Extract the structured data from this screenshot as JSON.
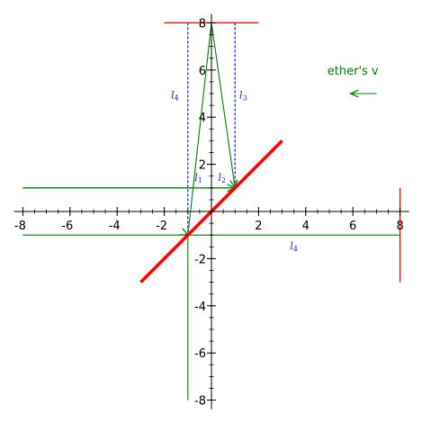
{
  "axes": {
    "xlim": [
      -8,
      8
    ],
    "ylim": [
      -8,
      8
    ],
    "major_ticks": [
      -8,
      -6,
      -4,
      -2,
      2,
      4,
      6,
      8
    ],
    "minor_step": 0.5,
    "x_tick_labels": [
      "-8",
      "-6",
      "-4",
      "-2",
      "2",
      "4",
      "6",
      "8"
    ],
    "y_tick_labels": [
      "-8",
      "-6",
      "-4",
      "-2",
      "2",
      "4",
      "6",
      "8"
    ]
  },
  "colors": {
    "red": "#ff0000",
    "green": "#008000",
    "blue": "#0000dd",
    "axis": "#000000"
  },
  "labels": {
    "l1": {
      "base": "l",
      "sub": "1",
      "x": -0.55,
      "y": 1.45
    },
    "l2": {
      "base": "l",
      "sub": "2",
      "x": 0.45,
      "y": 1.45
    },
    "l3": {
      "base": "l",
      "sub": "3",
      "x": 1.35,
      "y": 4.95
    },
    "l4_top": {
      "base": "l",
      "sub": "4",
      "x": -1.55,
      "y": 4.95
    },
    "l4_bottom": {
      "base": "l",
      "sub": "4",
      "x": 3.5,
      "y": -1.45
    }
  },
  "ether": {
    "label": "ether's v",
    "label_pos": [
      6.0,
      6.0
    ],
    "arrow_from": [
      7.0,
      5.0
    ],
    "arrow_to": [
      5.9,
      5.0
    ]
  },
  "elements": {
    "thick_line": {
      "from": [
        -3,
        -3
      ],
      "to": [
        3,
        3
      ]
    },
    "top_red_line": {
      "from": [
        -2,
        8
      ],
      "to": [
        2,
        8
      ]
    },
    "right_red_line": {
      "from": [
        8,
        1
      ],
      "to": [
        8,
        -3
      ]
    },
    "blue_left_dashed": {
      "from": [
        -1,
        8
      ],
      "to": [
        -1,
        -1
      ]
    },
    "blue_right_dashed": {
      "from": [
        1,
        8
      ],
      "to": [
        1,
        1
      ]
    },
    "green_upper_horizontal": {
      "from": [
        -8,
        1
      ],
      "to": [
        1,
        1
      ]
    },
    "green_lower_horizontal": {
      "from": [
        -8,
        -1
      ],
      "to": [
        8,
        -1
      ]
    },
    "green_vertical": {
      "from": [
        -1,
        -1
      ],
      "to": [
        -1,
        -8
      ]
    },
    "green_left_slant": {
      "from": [
        -1,
        -1
      ],
      "to": [
        0,
        8
      ]
    },
    "green_right_slant": {
      "from": [
        0,
        8
      ],
      "to": [
        1,
        1
      ]
    },
    "green_arrow_right": {
      "from": [
        -8,
        1
      ],
      "to": [
        1,
        1
      ]
    },
    "green_arrow_left": {
      "from": [
        -1.1,
        -0.95
      ],
      "to": [
        -1,
        -1
      ]
    }
  }
}
